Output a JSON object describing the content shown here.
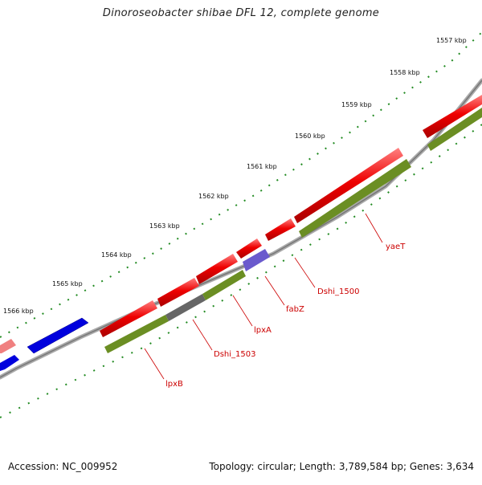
{
  "header": {
    "title": "Dinoroseobacter shibae DFL 12, complete genome"
  },
  "footer": {
    "accession": "Accession: NC_009952",
    "summary": "Topology: circular; Length: 3,789,584 bp; Genes: 3,634"
  },
  "ruler": {
    "unit": "kbp",
    "ticks": [
      {
        "label": "1557 kbp"
      },
      {
        "label": "1558 kbp"
      },
      {
        "label": "1559 kbp"
      },
      {
        "label": "1560 kbp"
      },
      {
        "label": "1561 kbp"
      },
      {
        "label": "1562 kbp"
      },
      {
        "label": "1563 kbp"
      },
      {
        "label": "1564 kbp"
      },
      {
        "label": "1565 kbp"
      },
      {
        "label": "1566 kbp"
      }
    ]
  },
  "genes": [
    {
      "name": "yaeT"
    },
    {
      "name": "Dshi_1500"
    },
    {
      "name": "fabZ"
    },
    {
      "name": "lpxA"
    },
    {
      "name": "Dshi_1503"
    },
    {
      "name": "lpxB"
    }
  ],
  "colors": {
    "cds": "#ee0000",
    "gene": "#6b8e23",
    "reverse_cds": "#0000dd",
    "faded_cds": "#f08080",
    "backbone": "#888888",
    "gc_ticks": "#2e8b2e",
    "label": "#cc0000"
  }
}
